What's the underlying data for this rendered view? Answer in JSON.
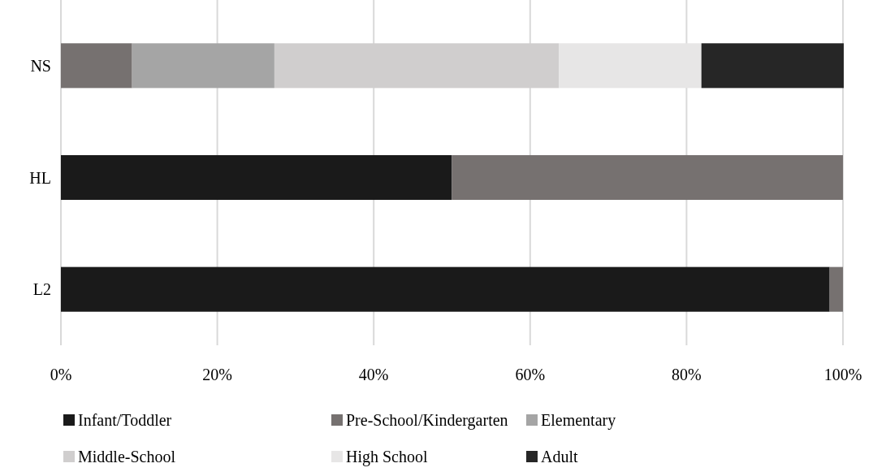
{
  "chart_data": {
    "type": "bar",
    "orientation": "horizontal",
    "stacked": true,
    "categories": [
      "NS",
      "HL",
      "L2"
    ],
    "series": [
      {
        "name": "Infant/Toddler",
        "color": "#1a1a1a",
        "values": [
          0,
          50,
          98.3
        ]
      },
      {
        "name": "Pre-School/Kindergarten",
        "color": "#767170",
        "values": [
          9.1,
          50,
          1.7
        ]
      },
      {
        "name": "Elementary",
        "color": "#a5a5a5",
        "values": [
          18.2,
          0,
          0
        ]
      },
      {
        "name": "Middle-School",
        "color": "#d0cece",
        "values": [
          36.4,
          0,
          0
        ]
      },
      {
        "name": "High School",
        "color": "#e7e6e6",
        "values": [
          18.2,
          0,
          0
        ]
      },
      {
        "name": "Adult",
        "color": "#262626",
        "values": [
          18.2,
          0,
          0
        ]
      }
    ],
    "xlim": [
      0,
      100
    ],
    "xticks": [
      {
        "value": 0,
        "label": "0%"
      },
      {
        "value": 20,
        "label": "20%"
      },
      {
        "value": 40,
        "label": "40%"
      },
      {
        "value": 60,
        "label": "60%"
      },
      {
        "value": 80,
        "label": "80%"
      },
      {
        "value": 100,
        "label": "100%"
      }
    ],
    "grid": "x",
    "legend": "bottom"
  }
}
